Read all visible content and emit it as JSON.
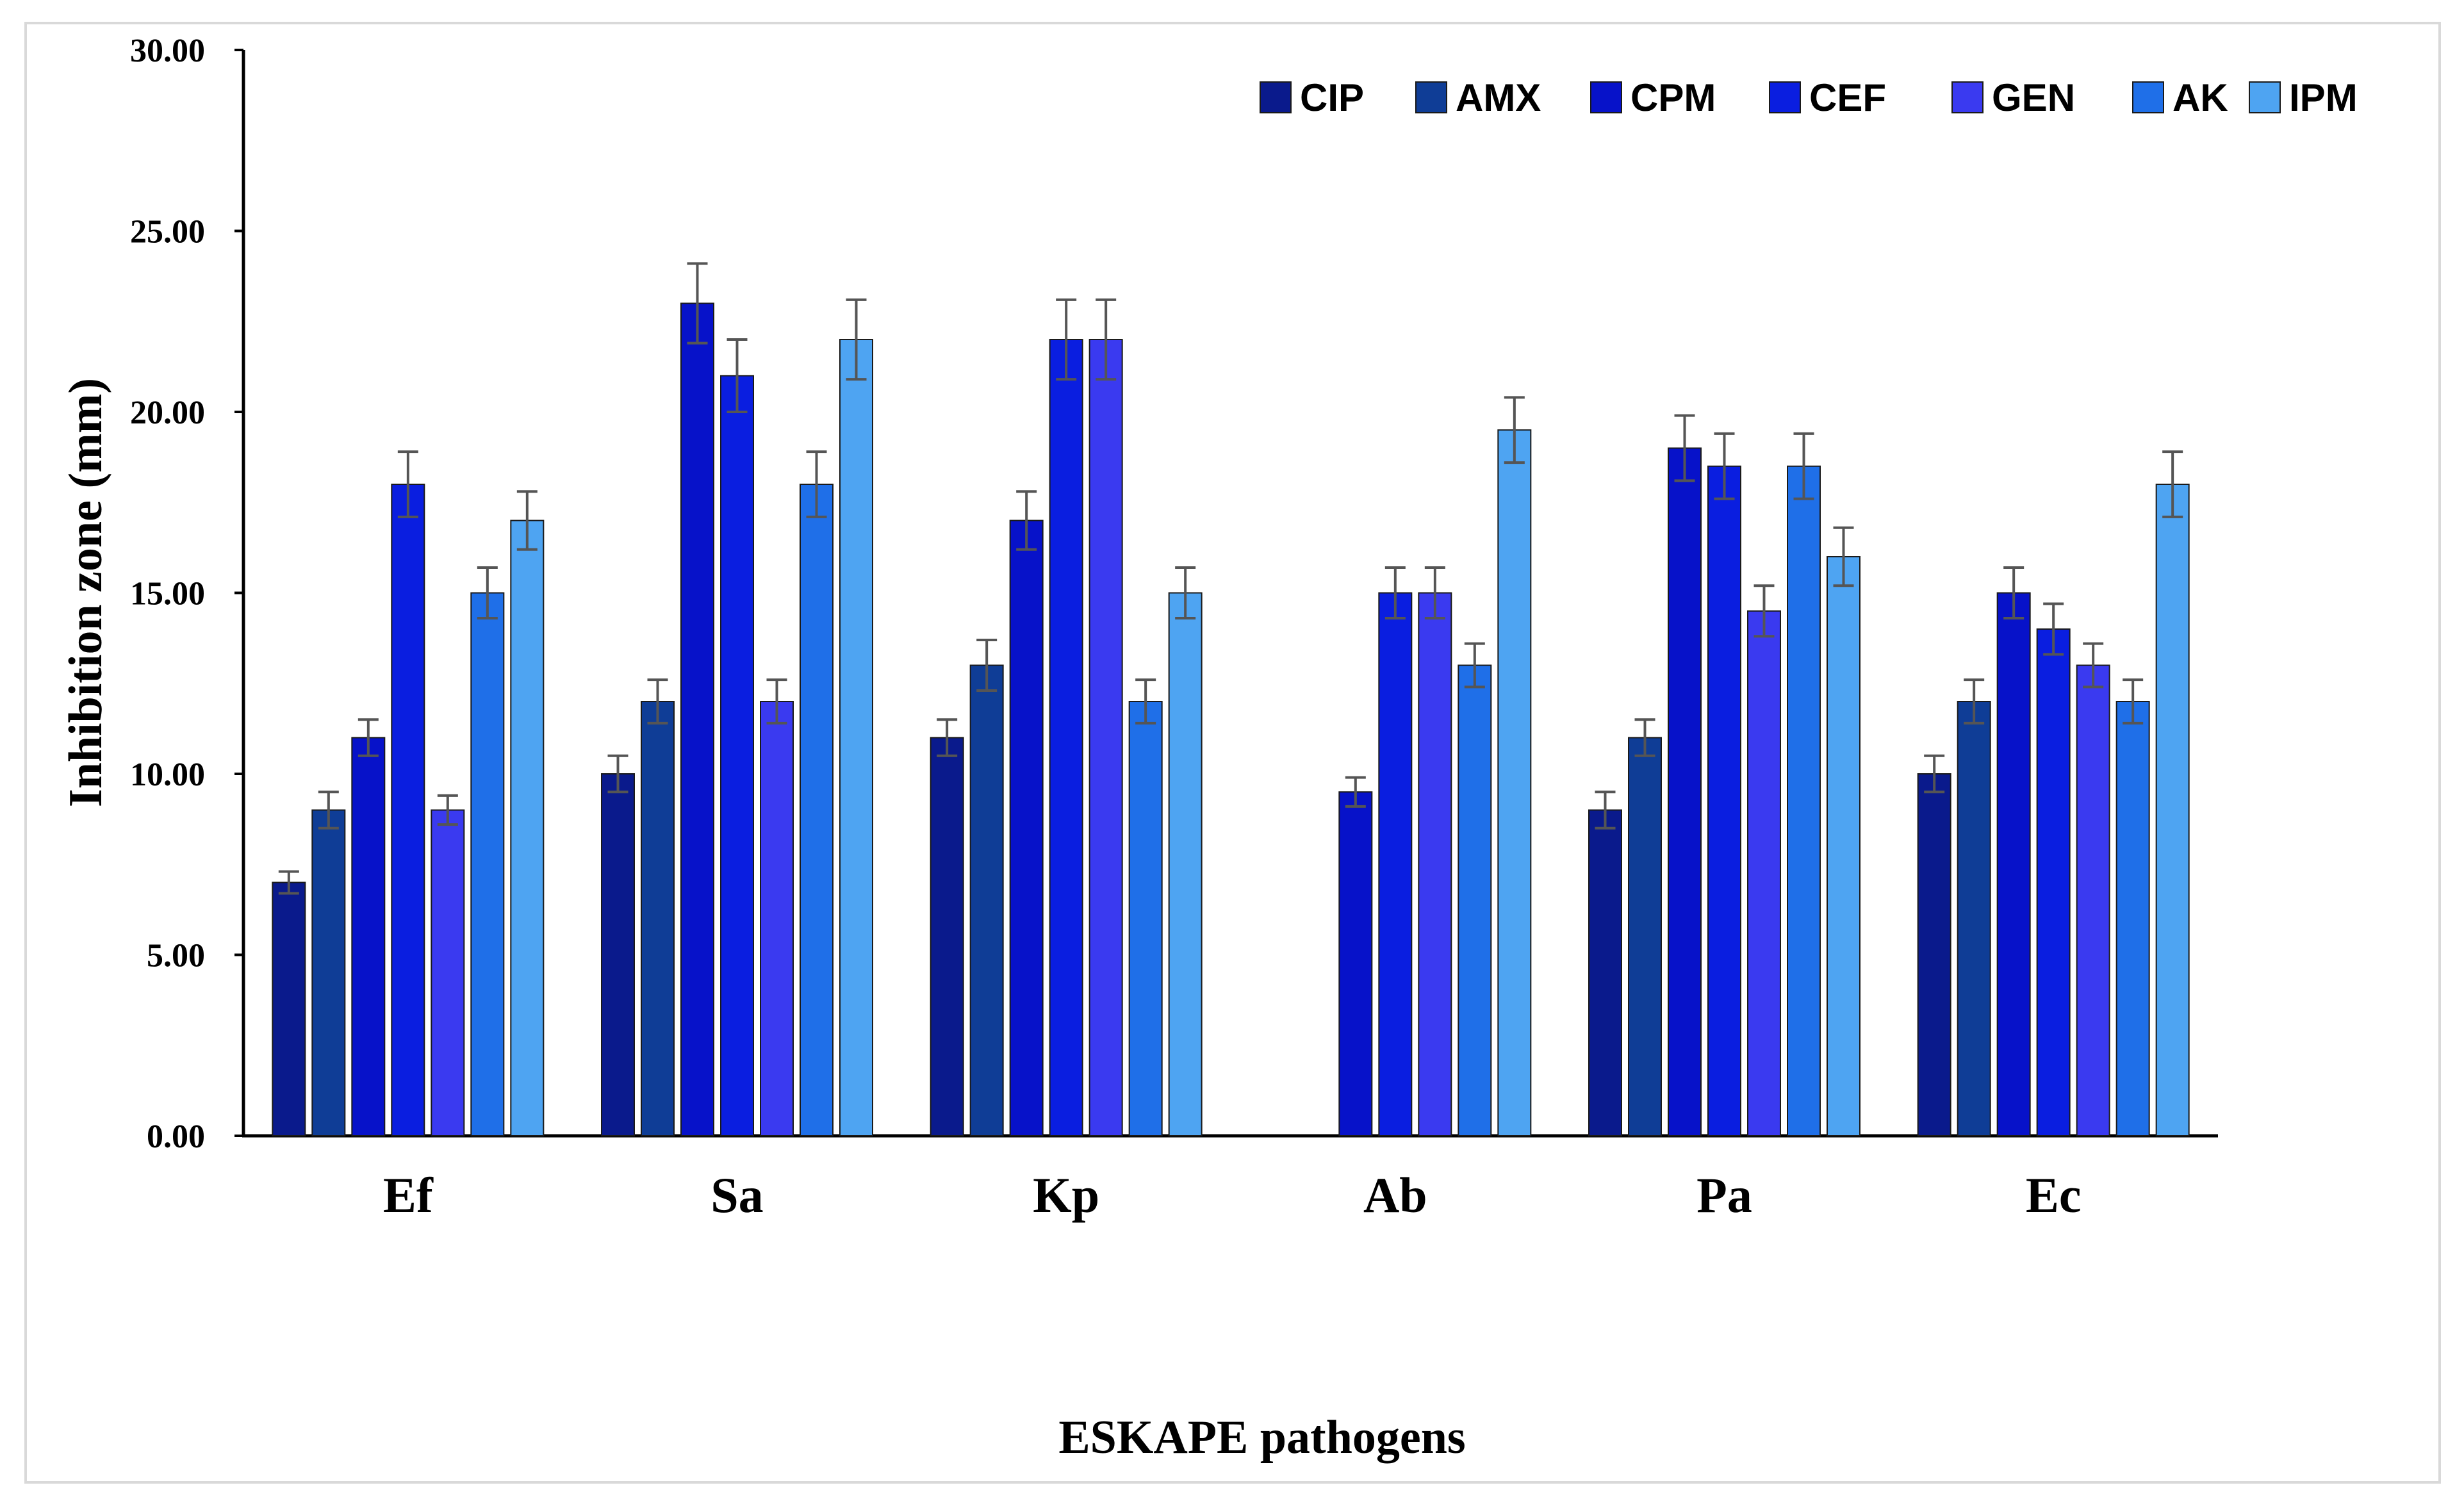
{
  "chart_data": {
    "type": "bar",
    "title": "",
    "xlabel": "ESKAPE pathogens",
    "ylabel": "Inhibition  zone (mm)",
    "ylim": [
      0,
      30
    ],
    "yticks": [
      "0.00",
      "5.00",
      "10.00",
      "15.00",
      "20.00",
      "25.00",
      "30.00"
    ],
    "categories": [
      "Ef",
      "Sa",
      "Kp",
      "Ab",
      "Pa",
      "Ec"
    ],
    "legend_position": "top-right",
    "grid": false,
    "error_bars": true,
    "series": [
      {
        "name": "CIP",
        "color": "#0a1a8c",
        "values": [
          7,
          10,
          11,
          null,
          9,
          10
        ],
        "errors": [
          0.3,
          0.5,
          0.5,
          null,
          0.5,
          0.5
        ]
      },
      {
        "name": "AMX",
        "color": "#0f3d96",
        "values": [
          9,
          12,
          13,
          null,
          11,
          12
        ],
        "errors": [
          0.5,
          0.6,
          0.7,
          null,
          0.5,
          0.6
        ]
      },
      {
        "name": "CPM",
        "color": "#0712c9",
        "values": [
          11,
          23,
          17,
          9.5,
          19,
          15
        ],
        "errors": [
          0.5,
          1.1,
          0.8,
          0.4,
          0.9,
          0.7
        ]
      },
      {
        "name": "CEF",
        "color": "#0a1ee0",
        "values": [
          18,
          21,
          22,
          15,
          18.5,
          14
        ],
        "errors": [
          0.9,
          1.0,
          1.1,
          0.7,
          0.9,
          0.7
        ]
      },
      {
        "name": "GEN",
        "color": "#3a3af0",
        "values": [
          9,
          12,
          22,
          15,
          14.5,
          13
        ],
        "errors": [
          0.4,
          0.6,
          1.1,
          0.7,
          0.7,
          0.6
        ]
      },
      {
        "name": "AK",
        "color": "#1f6fe8",
        "values": [
          15,
          18,
          12,
          13,
          18.5,
          12
        ],
        "errors": [
          0.7,
          0.9,
          0.6,
          0.6,
          0.9,
          0.6
        ]
      },
      {
        "name": "IPM",
        "color": "#4ea4f2",
        "values": [
          17,
          22,
          15,
          19.5,
          16,
          18
        ],
        "errors": [
          0.8,
          1.1,
          0.7,
          0.9,
          0.8,
          0.9
        ]
      }
    ]
  }
}
